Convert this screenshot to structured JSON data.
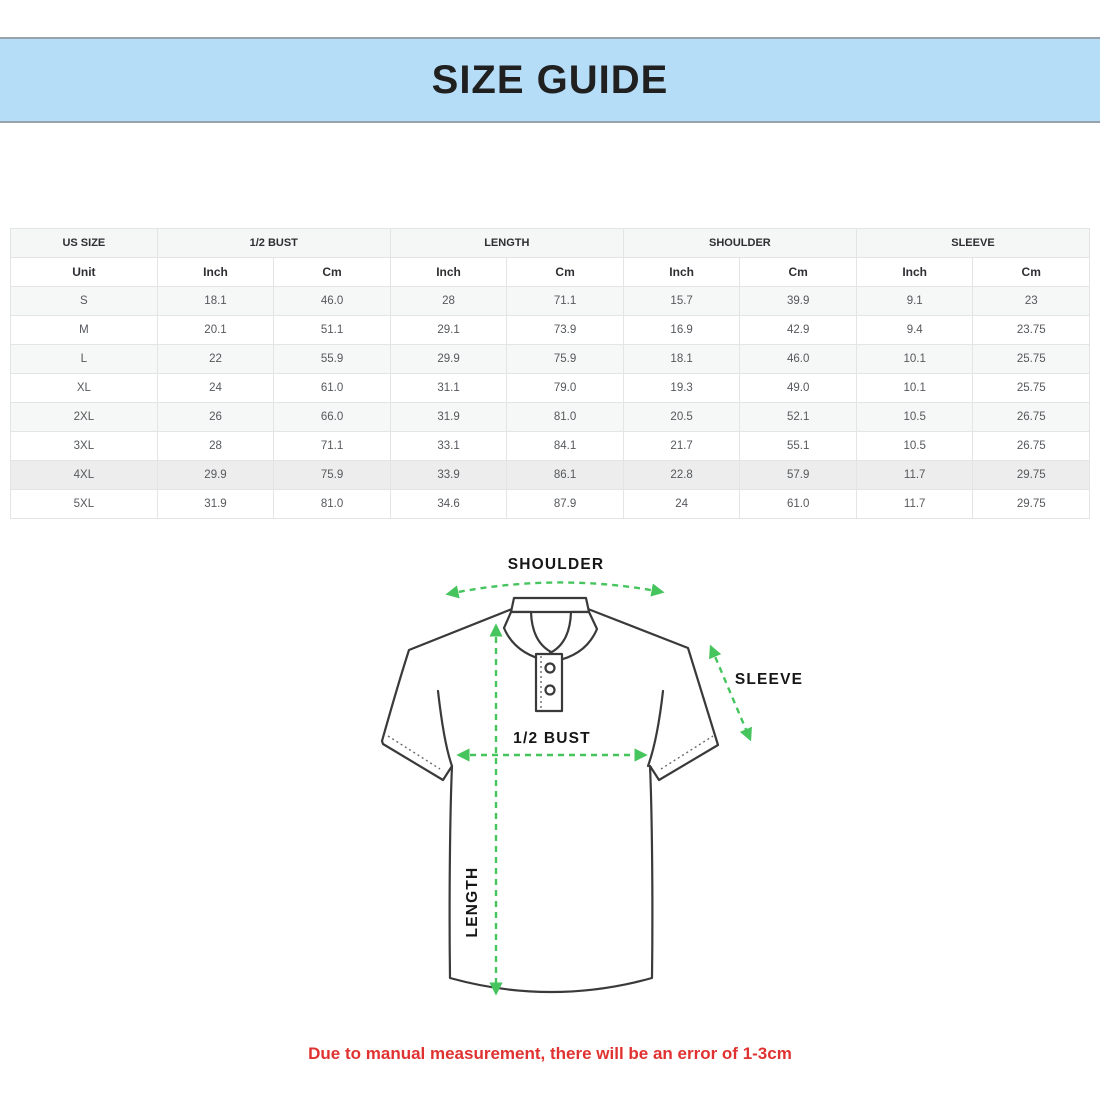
{
  "header": {
    "title": "SIZE GUIDE"
  },
  "table": {
    "groups": [
      {
        "label": "US SIZE",
        "colspan": 1
      },
      {
        "label": "1/2 BUST",
        "colspan": 2
      },
      {
        "label": "LENGTH",
        "colspan": 2
      },
      {
        "label": "SHOULDER",
        "colspan": 2
      },
      {
        "label": "SLEEVE",
        "colspan": 2
      }
    ],
    "unit_row": [
      "Unit",
      "Inch",
      "Cm",
      "Inch",
      "Cm",
      "Inch",
      "Cm",
      "Inch",
      "Cm"
    ],
    "rows": [
      [
        "S",
        "18.1",
        "46.0",
        "28",
        "71.1",
        "15.7",
        "39.9",
        "9.1",
        "23"
      ],
      [
        "M",
        "20.1",
        "51.1",
        "29.1",
        "73.9",
        "16.9",
        "42.9",
        "9.4",
        "23.75"
      ],
      [
        "L",
        "22",
        "55.9",
        "29.9",
        "75.9",
        "18.1",
        "46.0",
        "10.1",
        "25.75"
      ],
      [
        "XL",
        "24",
        "61.0",
        "31.1",
        "79.0",
        "19.3",
        "49.0",
        "10.1",
        "25.75"
      ],
      [
        "2XL",
        "26",
        "66.0",
        "31.9",
        "81.0",
        "20.5",
        "52.1",
        "10.5",
        "26.75"
      ],
      [
        "3XL",
        "28",
        "71.1",
        "33.1",
        "84.1",
        "21.7",
        "55.1",
        "10.5",
        "26.75"
      ],
      [
        "4XL",
        "29.9",
        "75.9",
        "33.9",
        "86.1",
        "22.8",
        "57.9",
        "11.7",
        "29.75"
      ],
      [
        "5XL",
        "31.9",
        "81.0",
        "34.6",
        "87.9",
        "24",
        "61.0",
        "11.7",
        "29.75"
      ]
    ]
  },
  "diagram": {
    "labels": {
      "shoulder": "SHOULDER",
      "sleeve": "SLEEVE",
      "bust": "1/2 BUST",
      "length": "LENGTH"
    }
  },
  "footer": {
    "note": "Due to manual measurement, there will be an error of 1-3cm"
  },
  "colors": {
    "band_bg": "#b5ddf8",
    "band_border": "#98a2aa",
    "arrow_green": "#46c55e",
    "shirt_outline": "#3a3a3a",
    "note_red": "#e03231"
  }
}
